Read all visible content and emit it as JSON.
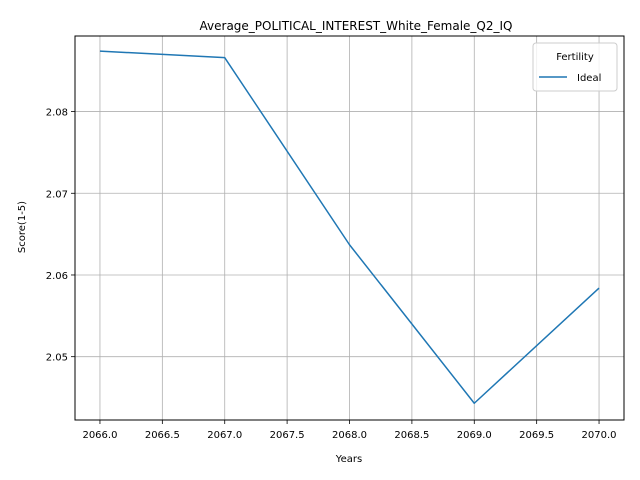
{
  "chart_data": {
    "type": "line",
    "title": "Average_POLITICAL_INTEREST_White_Female_Q2_IQ",
    "xlabel": "Years",
    "ylabel": "Score(1-5)",
    "x": [
      2066.0,
      2067.0,
      2068.0,
      2069.0,
      2070.0
    ],
    "series": [
      {
        "name": "Ideal",
        "color": "#1f77b4",
        "values": [
          2.0874,
          2.0866,
          2.0637,
          2.0443,
          2.0584
        ]
      }
    ],
    "xlim": [
      2065.8,
      2070.2
    ],
    "ylim": [
      2.04225,
      2.08925
    ],
    "xticks": [
      2066.0,
      2066.5,
      2067.0,
      2067.5,
      2068.0,
      2068.5,
      2069.0,
      2069.5,
      2070.0
    ],
    "xtick_labels": [
      "2066.0",
      "2066.5",
      "2067.0",
      "2067.5",
      "2068.0",
      "2068.5",
      "2069.0",
      "2069.5",
      "2070.0"
    ],
    "yticks": [
      2.05,
      2.06,
      2.07,
      2.08
    ],
    "ytick_labels": [
      "2.05",
      "2.06",
      "2.07",
      "2.08"
    ],
    "grid": true,
    "legend": {
      "title": "Fertility",
      "placement": "top-right"
    }
  }
}
